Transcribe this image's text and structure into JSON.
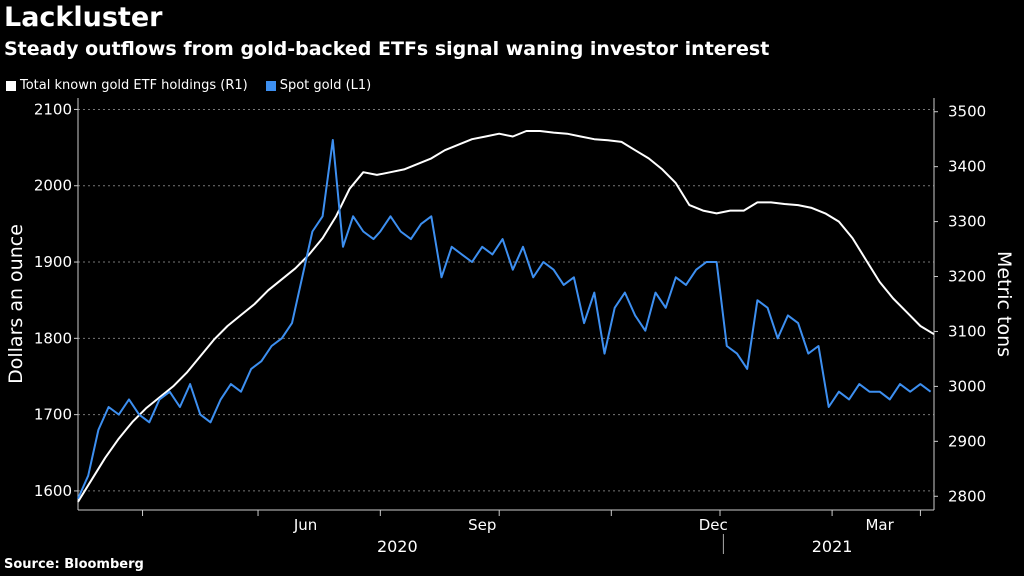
{
  "chart_data": {
    "type": "line",
    "title": "Lackluster",
    "subtitle": "Steady outflows from gold-backed ETFs signal waning investor interest",
    "ylabel_left": "Dollars an ounce",
    "ylabel_right": "Metric tons",
    "ylim_left": [
      1575,
      2115
    ],
    "ylim_right": [
      2775,
      3525
    ],
    "yticks_left": [
      1600,
      1700,
      1800,
      1900,
      2000,
      2100
    ],
    "yticks_right": [
      2800,
      2900,
      3000,
      3100,
      3200,
      3300,
      3400,
      3500
    ],
    "x_months": [
      "Jun",
      "Sep",
      "Dec",
      "Mar"
    ],
    "x_years": [
      "2020",
      "2021"
    ],
    "x_domain": [
      0,
      12.6
    ],
    "series": [
      {
        "name": "Total known gold ETF holdings (R1)",
        "axis": "right",
        "color": "#ffffff",
        "x": [
          0,
          0.2,
          0.4,
          0.6,
          0.8,
          1.0,
          1.2,
          1.4,
          1.6,
          1.8,
          2.0,
          2.2,
          2.4,
          2.6,
          2.8,
          3.0,
          3.2,
          3.4,
          3.6,
          3.8,
          4.0,
          4.2,
          4.4,
          4.6,
          4.8,
          5.0,
          5.2,
          5.4,
          5.6,
          5.8,
          6.0,
          6.2,
          6.4,
          6.6,
          6.8,
          7.0,
          7.2,
          7.4,
          7.6,
          7.8,
          8.0,
          8.2,
          8.4,
          8.6,
          8.8,
          9.0,
          9.2,
          9.4,
          9.6,
          9.8,
          10.0,
          10.2,
          10.4,
          10.6,
          10.8,
          11.0,
          11.2,
          11.4,
          11.6,
          11.8,
          12.0,
          12.2,
          12.4,
          12.6
        ],
        "values": [
          2790,
          2830,
          2870,
          2905,
          2935,
          2960,
          2980,
          3000,
          3025,
          3055,
          3085,
          3110,
          3130,
          3150,
          3175,
          3195,
          3215,
          3240,
          3270,
          3310,
          3360,
          3390,
          3385,
          3390,
          3395,
          3405,
          3415,
          3430,
          3440,
          3450,
          3455,
          3460,
          3455,
          3465,
          3465,
          3462,
          3460,
          3455,
          3450,
          3448,
          3445,
          3430,
          3415,
          3395,
          3370,
          3330,
          3320,
          3315,
          3320,
          3320,
          3335,
          3335,
          3332,
          3330,
          3325,
          3315,
          3300,
          3270,
          3230,
          3190,
          3160,
          3135,
          3110,
          3095
        ]
      },
      {
        "name": "Spot gold (L1)",
        "axis": "left",
        "color": "#3d8ff0",
        "x": [
          0,
          0.15,
          0.3,
          0.45,
          0.6,
          0.75,
          0.9,
          1.05,
          1.2,
          1.35,
          1.5,
          1.65,
          1.8,
          1.95,
          2.1,
          2.25,
          2.4,
          2.55,
          2.7,
          2.85,
          3.0,
          3.15,
          3.3,
          3.45,
          3.6,
          3.75,
          3.9,
          4.05,
          4.2,
          4.35,
          4.45,
          4.6,
          4.75,
          4.9,
          5.05,
          5.2,
          5.35,
          5.5,
          5.65,
          5.8,
          5.95,
          6.1,
          6.25,
          6.4,
          6.55,
          6.7,
          6.85,
          7.0,
          7.15,
          7.3,
          7.45,
          7.6,
          7.75,
          7.9,
          8.05,
          8.2,
          8.35,
          8.5,
          8.65,
          8.8,
          8.95,
          9.1,
          9.25,
          9.4,
          9.55,
          9.7,
          9.85,
          10.0,
          10.15,
          10.3,
          10.45,
          10.6,
          10.75,
          10.9,
          11.05,
          11.2,
          11.35,
          11.5,
          11.65,
          11.8,
          11.95,
          12.1,
          12.25,
          12.4,
          12.55
        ],
        "values": [
          1590,
          1620,
          1680,
          1710,
          1700,
          1720,
          1700,
          1690,
          1720,
          1730,
          1710,
          1740,
          1700,
          1690,
          1720,
          1740,
          1730,
          1760,
          1770,
          1790,
          1800,
          1820,
          1880,
          1940,
          1960,
          2060,
          1920,
          1960,
          1940,
          1930,
          1940,
          1960,
          1940,
          1930,
          1950,
          1960,
          1880,
          1920,
          1910,
          1900,
          1920,
          1910,
          1930,
          1890,
          1920,
          1880,
          1900,
          1890,
          1870,
          1880,
          1820,
          1860,
          1780,
          1840,
          1860,
          1830,
          1810,
          1860,
          1840,
          1880,
          1870,
          1890,
          1900,
          1900,
          1790,
          1780,
          1760,
          1850,
          1840,
          1800,
          1830,
          1820,
          1780,
          1790,
          1710,
          1730,
          1720,
          1740,
          1730,
          1730,
          1720,
          1740,
          1730,
          1740,
          1730
        ]
      }
    ]
  },
  "legend": {
    "etf_label": "Total known gold ETF holdings (R1)",
    "spot_label": "Spot gold (L1)"
  },
  "source": "Source: Bloomberg"
}
